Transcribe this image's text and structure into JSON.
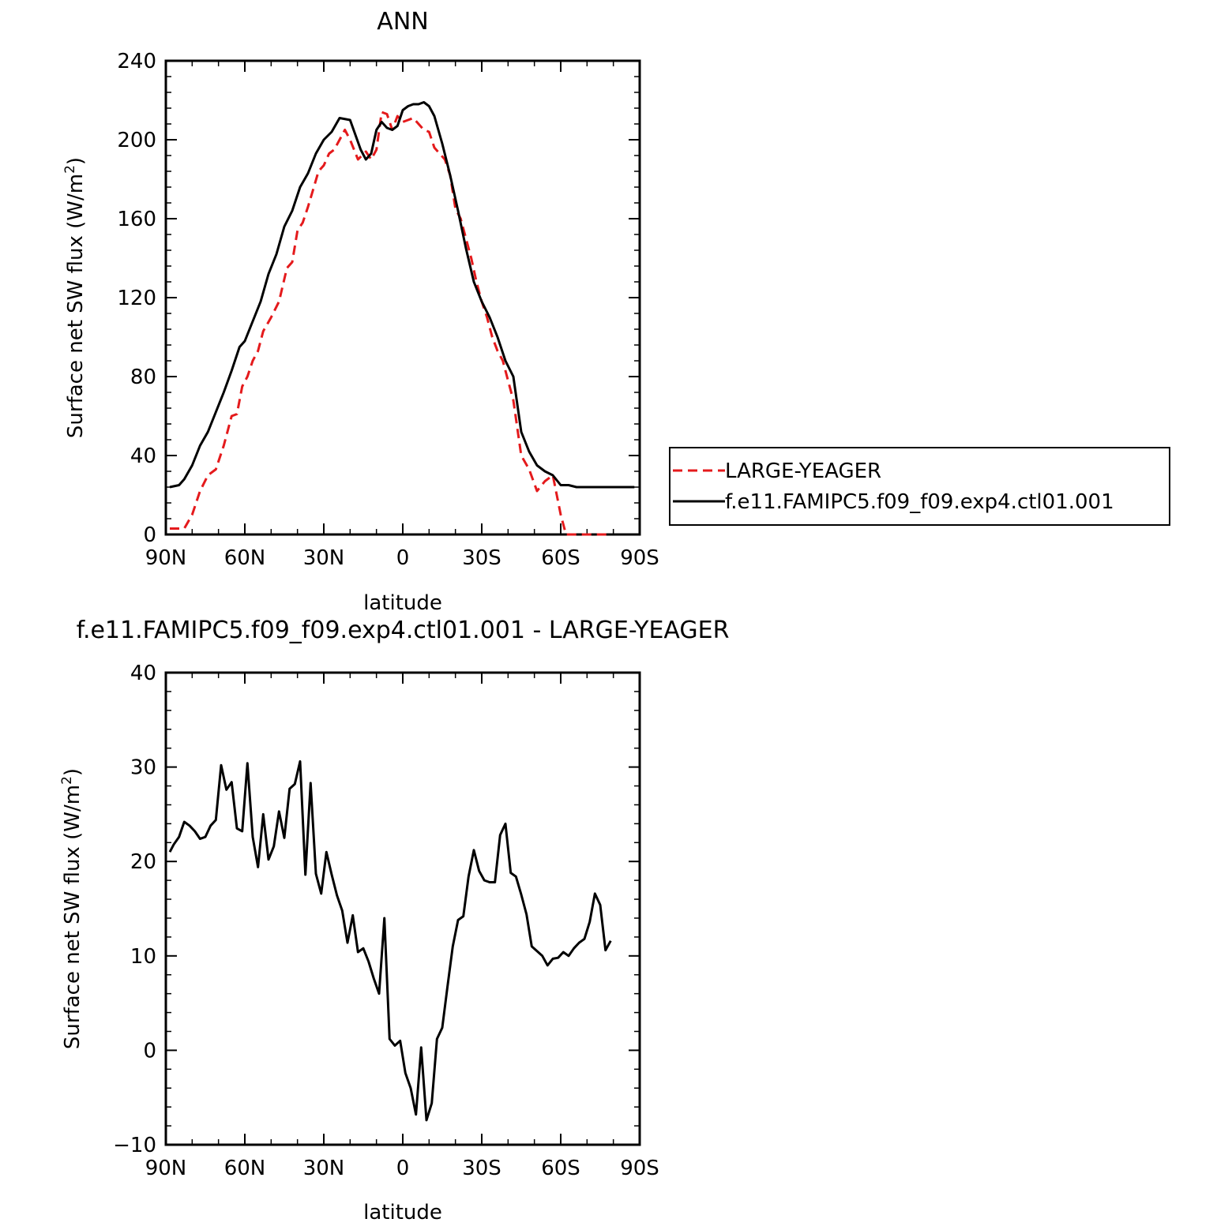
{
  "chart_data": [
    {
      "type": "line",
      "title": "ANN",
      "xlabel": "latitude",
      "ylabel": "Surface net SW flux (W/m",
      "ylabel_sup": "2",
      "ylabel_suffix": ")",
      "xlim": [
        90,
        -90
      ],
      "ylim": [
        0,
        240
      ],
      "xticks": [
        90,
        60,
        30,
        0,
        -30,
        -60,
        -90
      ],
      "xtick_labels": [
        "90N",
        "60N",
        "30N",
        "0",
        "30S",
        "60S",
        "90S"
      ],
      "yticks": [
        0,
        40,
        80,
        120,
        160,
        200,
        240
      ],
      "ytick_labels": [
        "0",
        "40",
        "80",
        "120",
        "160",
        "200",
        "240"
      ],
      "legend_placement": "right",
      "series": [
        {
          "name": "LARGE-YEAGER",
          "color": "#e41a1c",
          "style": "dashed",
          "x": [
            88.5,
            86,
            83,
            80,
            77,
            74,
            71,
            68,
            65,
            63,
            61,
            59,
            57,
            55,
            53,
            50,
            47,
            44,
            42,
            40,
            38,
            36,
            34,
            32,
            30,
            28,
            26,
            24,
            22,
            20,
            17,
            14,
            12,
            10,
            8,
            6,
            4,
            2,
            0,
            -2,
            -4,
            -6,
            -8,
            -10,
            -12,
            -14,
            -16,
            -18,
            -20,
            -22,
            -24,
            -26,
            -28,
            -30,
            -32,
            -34,
            -36,
            -38,
            -40,
            -42,
            -45,
            -48,
            -51,
            -54,
            -57,
            -60,
            -62,
            -64,
            -66,
            -68,
            -70,
            -72,
            -74,
            -76,
            -78,
            -79
          ],
          "y": [
            3,
            3,
            3,
            10,
            22,
            30,
            33,
            45,
            60,
            61,
            75,
            80,
            88,
            93,
            103,
            110,
            118,
            135,
            138,
            154,
            158,
            166,
            175,
            184,
            187,
            193,
            195,
            200,
            205,
            200,
            190,
            194,
            190,
            195,
            214,
            213,
            205,
            212,
            209,
            210,
            211,
            208,
            205,
            204,
            196,
            193,
            190,
            182,
            165,
            160,
            150,
            140,
            128,
            118,
            110,
            100,
            93,
            88,
            78,
            68,
            40,
            33,
            22,
            27,
            30,
            10,
            0,
            0,
            0,
            0,
            0,
            0,
            0,
            0,
            0,
            0
          ],
          "y_note": ""
        },
        {
          "name": "f.e11.FAMIPC5.f09_f09.exp4.ctl01.001",
          "color": "#000000",
          "style": "solid",
          "x": [
            88.5,
            85,
            83,
            80,
            77,
            74,
            71,
            68,
            65,
            62,
            60,
            57,
            54,
            51,
            48,
            45,
            42,
            39,
            36,
            33,
            30,
            27,
            24,
            20,
            16,
            14,
            12,
            10,
            8,
            6,
            4,
            2,
            0,
            -2,
            -4,
            -6,
            -8,
            -10,
            -12,
            -15,
            -18,
            -21,
            -24,
            -27,
            -30,
            -33,
            -36,
            -39,
            -42,
            -45,
            -48,
            -51,
            -54,
            -57,
            -60,
            -63,
            -66,
            -68,
            -70,
            -72,
            -74,
            -78,
            -80,
            -84,
            -88
          ],
          "y": [
            24,
            25,
            28,
            35,
            45,
            52,
            62,
            72,
            83,
            95,
            98,
            108,
            118,
            132,
            142,
            156,
            164,
            176,
            183,
            193,
            200,
            204,
            211,
            210,
            195,
            190,
            193,
            205,
            209,
            206,
            205,
            207,
            215,
            217,
            218,
            218,
            219,
            217,
            212,
            198,
            182,
            164,
            145,
            128,
            118,
            110,
            100,
            88,
            80,
            52,
            42,
            35,
            32,
            30,
            25,
            25,
            24,
            24,
            24,
            24,
            24,
            24,
            24,
            24,
            24
          ]
        }
      ]
    },
    {
      "type": "line",
      "title": "f.e11.FAMIPC5.f09_f09.exp4.ctl01.001 - LARGE-YEAGER",
      "xlabel": "latitude",
      "ylabel": "Surface net SW flux (W/m",
      "ylabel_sup": "2",
      "ylabel_suffix": ")",
      "xlim": [
        90,
        -90
      ],
      "ylim": [
        -10,
        40
      ],
      "xticks": [
        90,
        60,
        30,
        0,
        -30,
        -60,
        -90
      ],
      "xtick_labels": [
        "90N",
        "60N",
        "30N",
        "0",
        "30S",
        "60S",
        "90S"
      ],
      "yticks": [
        -10,
        0,
        10,
        20,
        30,
        40
      ],
      "ytick_labels": [
        "−10",
        "0",
        "10",
        "20",
        "30",
        "40"
      ],
      "series": [
        {
          "color": "#000000",
          "style": "solid",
          "x": [
            88.5,
            87,
            85,
            83,
            81,
            79,
            77,
            75,
            73,
            71,
            69,
            67,
            65,
            63,
            61,
            59,
            57,
            55,
            53,
            51,
            49,
            47,
            45,
            43,
            41,
            39,
            37,
            35,
            33,
            31,
            29,
            27,
            25,
            23,
            21,
            19,
            17,
            15,
            13,
            11,
            9,
            7,
            5,
            3,
            1,
            -1,
            -3,
            -5,
            -7,
            -9,
            -11,
            -13,
            -15,
            -17,
            -19,
            -21,
            -23,
            -25,
            -27,
            -29,
            -31,
            -33,
            -35,
            -37,
            -39,
            -41,
            -43,
            -45,
            -47,
            -49,
            -51,
            -53,
            -55,
            -57,
            -59,
            -61,
            -63,
            -65,
            -67,
            -69,
            -71,
            -73,
            -75,
            -77,
            -79
          ],
          "y": [
            21,
            21.8,
            22.6,
            24.2,
            23.8,
            23.2,
            22.4,
            22.6,
            23.8,
            24.4,
            30.2,
            27.6,
            28.4,
            23.5,
            23.2,
            30.4,
            22.6,
            19.4,
            25,
            20.2,
            21.6,
            25.3,
            22.5,
            27.7,
            28.2,
            30.6,
            18.6,
            28.3,
            18.7,
            16.6,
            21,
            18.6,
            16.4,
            14.8,
            11.4,
            14.3,
            10.4,
            10.8,
            9.4,
            7.6,
            6,
            14,
            1.2,
            0.5,
            1,
            -2.4,
            -4,
            -6.8,
            0.3,
            -7.4,
            -5.6,
            1.2,
            2.4,
            6.8,
            11,
            13.8,
            14.2,
            18.4,
            21.2,
            19,
            18,
            17.8,
            17.8,
            22.8,
            24,
            18.8,
            18.4,
            16.5,
            14.4,
            11,
            10.5,
            10,
            9,
            9.7,
            9.8,
            10.4,
            10,
            10.8,
            11.4,
            11.8,
            13.6,
            16.6,
            15.4,
            10.6,
            11.6
          ]
        }
      ]
    }
  ]
}
